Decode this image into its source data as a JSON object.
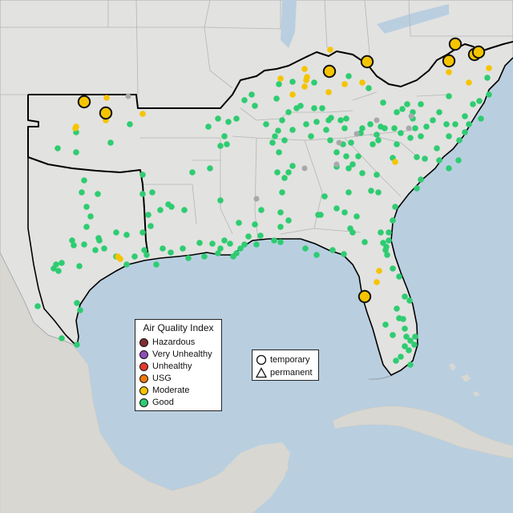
{
  "colors": {
    "ocean": "#b9cfe0",
    "land": "#e2e2e0",
    "foreign_land": "#d8d7d1",
    "state_line": "#b8b8b8",
    "region_border": "#000000",
    "good": "#2ecc71",
    "moderate": "#f5c400",
    "unknown": "#a6a9ac"
  },
  "legend": {
    "title": "Air Quality Index",
    "items": [
      {
        "label": "Hazardous",
        "color": "#7e2e2e"
      },
      {
        "label": "Very Unhealthy",
        "color": "#8f4fb5"
      },
      {
        "label": "Unhealthy",
        "color": "#e33b2e"
      },
      {
        "label": "USG",
        "color": "#ef7a0f"
      },
      {
        "label": "Moderate",
        "color": "#f5c400"
      },
      {
        "label": "Good",
        "color": "#2ecc71"
      }
    ]
  },
  "shape_legend": {
    "temporary": "temporary",
    "permanent": "permanent"
  },
  "monitors": {
    "large_moderate_count": 10,
    "small_moderate_count": 24,
    "good_count": 230,
    "no_data_count": 9
  }
}
